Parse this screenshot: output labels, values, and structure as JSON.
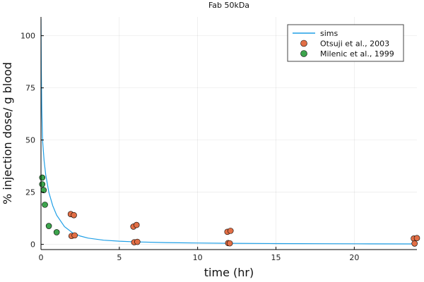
{
  "chart_data": {
    "type": "scatter",
    "title": "Fab 50kDa",
    "xlabel": "time (hr)",
    "ylabel": "% injection dose/ g blood",
    "xlim": [
      0,
      24
    ],
    "ylim": [
      -2.5,
      109
    ],
    "xticks": [
      0,
      5,
      10,
      15,
      20
    ],
    "xtick_labels": [
      "0",
      "5",
      "10",
      "15",
      "20"
    ],
    "yticks": [
      0,
      25,
      50,
      75,
      100
    ],
    "ytick_labels": [
      "0",
      "25",
      "50",
      "75",
      "100"
    ],
    "grid": true,
    "legend_position": "top-right",
    "series": [
      {
        "name": "sims",
        "kind": "line",
        "color": "#1f9fe6",
        "x": [
          0,
          0.02,
          0.05,
          0.1,
          0.2,
          0.3,
          0.5,
          0.75,
          1,
          1.5,
          2,
          2.5,
          3,
          4,
          5,
          6,
          8,
          10,
          12,
          15,
          18,
          21,
          24
        ],
        "y": [
          108,
          85,
          65,
          50,
          40,
          33.5,
          25,
          18.5,
          14,
          8.5,
          5.6,
          4.0,
          3.0,
          2.0,
          1.5,
          1.2,
          0.85,
          0.65,
          0.5,
          0.38,
          0.3,
          0.25,
          0.2
        ]
      },
      {
        "name": "Otsuji et al., 2003",
        "kind": "scatter",
        "color": "#e26f46",
        "x": [
          1.9,
          2.1,
          1.95,
          2.15,
          5.9,
          6.1,
          5.95,
          6.15,
          11.9,
          12.1,
          11.95,
          12.05,
          23.8,
          24.0,
          23.85
        ],
        "y": [
          14.5,
          14.0,
          4.0,
          4.3,
          8.5,
          9.3,
          1.0,
          1.2,
          6.0,
          6.5,
          0.6,
          0.5,
          2.8,
          3.0,
          0.4
        ]
      },
      {
        "name": "Milenic et al., 1999",
        "kind": "scatter",
        "color": "#3da44d",
        "x": [
          0.08,
          0.08,
          0.17,
          0.25,
          0.5,
          1.0
        ],
        "y": [
          32.0,
          28.8,
          26.0,
          19.0,
          8.8,
          5.8
        ]
      }
    ]
  }
}
